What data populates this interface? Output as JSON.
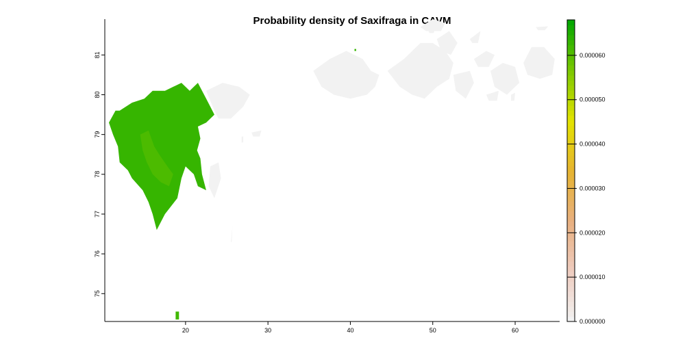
{
  "chart_data": {
    "type": "heatmap",
    "title": "Probability density of Saxifraga in CAVM",
    "xlabel": "",
    "ylabel": "",
    "xlim": [
      10.2,
      65.4
    ],
    "ylim": [
      74.3,
      81.9
    ],
    "x_ticks": [
      20,
      30,
      40,
      50,
      60
    ],
    "y_ticks": [
      75,
      76,
      77,
      78,
      79,
      80,
      81
    ],
    "colorbar": {
      "range": [
        0,
        6.8e-05
      ],
      "ticks": [
        0,
        1e-05,
        2e-05,
        3e-05,
        4e-05,
        5e-05,
        6e-05
      ],
      "tick_labels": [
        "0.000000",
        "0.000010",
        "0.000020",
        "0.000030",
        "0.000040",
        "0.000050",
        "0.000060"
      ],
      "colors": [
        "#f2f2f2",
        "#eeccbf",
        "#e8b080",
        "#e6b431",
        "#e3e300",
        "#7bc800",
        "#00a600"
      ]
    },
    "no_data_color": "#f2f2f2",
    "regions": [
      {
        "name": "",
        "value": 6.3e-05,
        "polygon": [
          [
            12.0,
            79.6
          ],
          [
            13.5,
            79.8
          ],
          [
            15.0,
            79.9
          ],
          [
            16.0,
            80.1
          ],
          [
            17.5,
            80.1
          ],
          [
            18.5,
            80.2
          ],
          [
            19.5,
            80.3
          ],
          [
            20.5,
            80.1
          ],
          [
            21.5,
            80.3
          ],
          [
            22.5,
            79.9
          ],
          [
            23.0,
            79.7
          ],
          [
            23.5,
            79.5
          ],
          [
            22.5,
            79.3
          ],
          [
            21.5,
            79.2
          ],
          [
            21.8,
            78.9
          ],
          [
            21.4,
            78.6
          ],
          [
            21.8,
            78.4
          ],
          [
            22.0,
            78.0
          ],
          [
            22.5,
            77.6
          ],
          [
            21.5,
            77.7
          ],
          [
            21.0,
            78.0
          ],
          [
            20.0,
            78.2
          ],
          [
            19.5,
            77.9
          ],
          [
            19.0,
            77.4
          ],
          [
            17.5,
            77.0
          ],
          [
            16.5,
            76.6
          ],
          [
            16.0,
            77.0
          ],
          [
            15.5,
            77.3
          ],
          [
            14.8,
            77.6
          ],
          [
            13.5,
            77.9
          ],
          [
            13.0,
            78.1
          ],
          [
            12.0,
            78.3
          ],
          [
            11.8,
            78.7
          ],
          [
            11.2,
            79.0
          ],
          [
            10.7,
            79.3
          ],
          [
            11.5,
            79.6
          ],
          [
            12.0,
            79.6
          ]
        ]
      },
      {
        "name": "",
        "value": 6.1e-05,
        "polygon": [
          [
            14.5,
            79.0
          ],
          [
            15.5,
            79.1
          ],
          [
            16.2,
            78.7
          ],
          [
            16.8,
            78.5
          ],
          [
            17.8,
            78.2
          ],
          [
            18.5,
            78.0
          ],
          [
            18.0,
            77.7
          ],
          [
            17.0,
            77.8
          ],
          [
            16.0,
            78.0
          ],
          [
            15.3,
            78.3
          ],
          [
            14.8,
            78.6
          ],
          [
            14.5,
            79.0
          ]
        ]
      },
      {
        "name": "",
        "value": 6.2e-05,
        "polygon": [
          [
            18.8,
            74.55
          ],
          [
            19.2,
            74.55
          ],
          [
            19.2,
            74.35
          ],
          [
            18.8,
            74.35
          ],
          [
            18.8,
            74.55
          ]
        ]
      },
      {
        "name": "",
        "value": 6.3e-05,
        "polygon": [
          [
            37.2,
            80.85
          ],
          [
            38.0,
            80.85
          ],
          [
            38.0,
            80.8
          ],
          [
            37.2,
            80.8
          ],
          [
            37.2,
            80.85
          ]
        ]
      },
      {
        "name": "",
        "value": 6.3e-05,
        "polygon": [
          [
            39.4,
            80.3
          ],
          [
            39.9,
            80.3
          ],
          [
            39.9,
            80.25
          ],
          [
            39.4,
            80.25
          ],
          [
            39.4,
            80.3
          ]
        ]
      },
      {
        "name": "",
        "value": 6.3e-05,
        "polygon": [
          [
            41.0,
            80.1
          ],
          [
            41.4,
            80.1
          ],
          [
            41.4,
            80.03
          ],
          [
            41.0,
            80.03
          ],
          [
            41.0,
            80.1
          ]
        ]
      },
      {
        "name": "",
        "value": 6.3e-05,
        "polygon": [
          [
            40.3,
            80.3
          ],
          [
            40.6,
            80.3
          ],
          [
            40.6,
            80.24
          ],
          [
            40.3,
            80.24
          ],
          [
            40.3,
            80.3
          ]
        ]
      },
      {
        "name": "",
        "value": 6.3e-05,
        "polygon": [
          [
            40.5,
            81.15
          ],
          [
            40.7,
            81.15
          ],
          [
            40.7,
            81.1
          ],
          [
            40.5,
            81.1
          ],
          [
            40.5,
            81.15
          ]
        ]
      },
      {
        "name": "",
        "value": 0,
        "polygon": [
          [
            22.5,
            80.1
          ],
          [
            24.5,
            80.3
          ],
          [
            26.5,
            80.2
          ],
          [
            27.8,
            80.0
          ],
          [
            27.0,
            79.7
          ],
          [
            25.5,
            79.4
          ],
          [
            24.0,
            79.4
          ],
          [
            23.5,
            79.6
          ],
          [
            22.5,
            80.1
          ]
        ]
      },
      {
        "name": "",
        "value": 0,
        "polygon": [
          [
            23.0,
            78.2
          ],
          [
            24.0,
            78.3
          ],
          [
            24.3,
            77.9
          ],
          [
            23.5,
            77.4
          ],
          [
            22.8,
            77.7
          ],
          [
            23.0,
            78.2
          ]
        ]
      },
      {
        "name": "",
        "value": 0,
        "polygon": [
          [
            28.0,
            79.05
          ],
          [
            29.2,
            79.1
          ],
          [
            29.0,
            78.95
          ],
          [
            28.2,
            78.95
          ],
          [
            28.0,
            79.05
          ]
        ]
      },
      {
        "name": "",
        "value": 0,
        "polygon": [
          [
            26.8,
            78.95
          ],
          [
            27.0,
            78.95
          ],
          [
            27.0,
            78.8
          ],
          [
            26.8,
            78.8
          ],
          [
            26.8,
            78.95
          ]
        ]
      },
      {
        "name": "",
        "value": 0,
        "polygon": [
          [
            25.5,
            76.3
          ],
          [
            25.7,
            76.7
          ],
          [
            25.6,
            76.3
          ],
          [
            25.5,
            76.3
          ]
        ]
      },
      {
        "name": "",
        "value": 0,
        "polygon": [
          [
            35.5,
            80.6
          ],
          [
            37.5,
            80.9
          ],
          [
            39.5,
            81.1
          ],
          [
            41.5,
            80.9
          ],
          [
            42.5,
            80.6
          ],
          [
            43.5,
            80.5
          ],
          [
            43.0,
            80.2
          ],
          [
            42.0,
            80.0
          ],
          [
            40.0,
            79.9
          ],
          [
            38.0,
            80.0
          ],
          [
            36.5,
            80.2
          ],
          [
            35.5,
            80.6
          ]
        ]
      },
      {
        "name": "",
        "value": 0,
        "polygon": [
          [
            44.5,
            80.6
          ],
          [
            46.5,
            80.9
          ],
          [
            48.5,
            81.3
          ],
          [
            50.0,
            81.3
          ],
          [
            51.5,
            81.1
          ],
          [
            52.5,
            80.8
          ],
          [
            52.0,
            80.4
          ],
          [
            50.5,
            80.2
          ],
          [
            49.0,
            79.9
          ],
          [
            47.5,
            80.0
          ],
          [
            46.0,
            80.2
          ],
          [
            44.5,
            80.6
          ]
        ]
      },
      {
        "name": "",
        "value": 0,
        "polygon": [
          [
            48.5,
            81.7
          ],
          [
            50.0,
            81.9
          ],
          [
            51.5,
            81.8
          ],
          [
            51.0,
            81.6
          ],
          [
            49.2,
            81.6
          ],
          [
            48.5,
            81.7
          ]
        ]
      },
      {
        "name": "",
        "value": 0,
        "polygon": [
          [
            50.5,
            81.4
          ],
          [
            52.0,
            81.6
          ],
          [
            53.0,
            81.3
          ],
          [
            52.2,
            81.0
          ],
          [
            51.0,
            81.1
          ],
          [
            50.5,
            81.4
          ]
        ]
      },
      {
        "name": "",
        "value": 0,
        "polygon": [
          [
            52.5,
            80.5
          ],
          [
            54.5,
            80.6
          ],
          [
            55.0,
            80.3
          ],
          [
            54.0,
            79.9
          ],
          [
            52.8,
            80.1
          ],
          [
            52.5,
            80.5
          ]
        ]
      },
      {
        "name": "",
        "value": 0,
        "polygon": [
          [
            55.0,
            80.9
          ],
          [
            56.5,
            81.1
          ],
          [
            57.5,
            81.0
          ],
          [
            56.8,
            80.7
          ],
          [
            55.5,
            80.7
          ],
          [
            55.0,
            80.9
          ]
        ]
      },
      {
        "name": "",
        "value": 0,
        "polygon": [
          [
            57.0,
            80.6
          ],
          [
            58.5,
            80.8
          ],
          [
            60.0,
            80.7
          ],
          [
            60.5,
            80.3
          ],
          [
            59.0,
            80.0
          ],
          [
            57.5,
            80.2
          ],
          [
            57.0,
            80.6
          ]
        ]
      },
      {
        "name": "",
        "value": 0,
        "polygon": [
          [
            56.5,
            80.0
          ],
          [
            58.0,
            80.1
          ],
          [
            57.8,
            79.85
          ],
          [
            56.8,
            79.85
          ],
          [
            56.5,
            80.0
          ]
        ]
      },
      {
        "name": "",
        "value": 0,
        "polygon": [
          [
            59.5,
            80.0
          ],
          [
            60.0,
            80.05
          ],
          [
            59.9,
            79.85
          ],
          [
            59.5,
            79.85
          ],
          [
            59.5,
            80.0
          ]
        ]
      },
      {
        "name": "",
        "value": 0,
        "polygon": [
          [
            61.0,
            80.8
          ],
          [
            62.0,
            81.2
          ],
          [
            63.5,
            81.2
          ],
          [
            64.8,
            80.9
          ],
          [
            64.5,
            80.5
          ],
          [
            63.0,
            80.4
          ],
          [
            61.5,
            80.5
          ],
          [
            61.0,
            80.8
          ]
        ]
      },
      {
        "name": "",
        "value": 0,
        "polygon": [
          [
            62.5,
            81.7
          ],
          [
            64.0,
            81.72
          ],
          [
            63.6,
            81.62
          ],
          [
            62.8,
            81.62
          ],
          [
            62.5,
            81.7
          ]
        ]
      },
      {
        "name": "",
        "value": 0,
        "polygon": [
          [
            54.5,
            81.4
          ],
          [
            55.8,
            81.6
          ],
          [
            55.5,
            81.3
          ],
          [
            54.8,
            81.3
          ],
          [
            54.5,
            81.4
          ]
        ]
      },
      {
        "name": "",
        "value": 0,
        "polygon": [
          [
            49.5,
            81.6
          ],
          [
            50.2,
            81.6
          ],
          [
            50.1,
            81.55
          ],
          [
            49.6,
            81.55
          ],
          [
            49.5,
            81.6
          ]
        ]
      }
    ]
  }
}
